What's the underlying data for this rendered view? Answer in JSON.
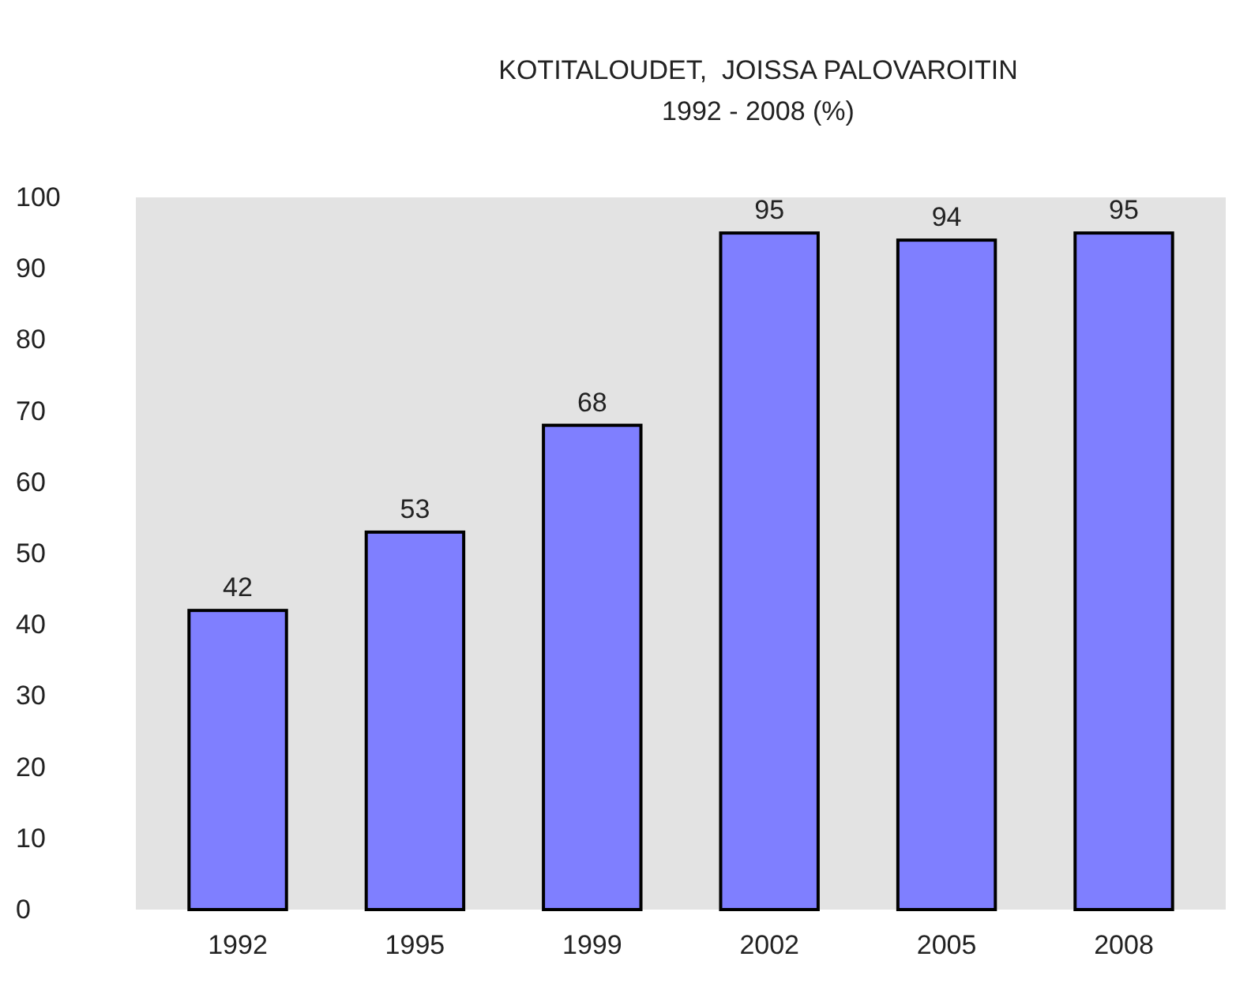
{
  "chart_data": {
    "type": "bar",
    "title": "KOTITALOUDET,  JOISSA PALOVAROITIN",
    "subtitle": "1992 - 2008 (%)",
    "categories": [
      "1992",
      "1995",
      "1999",
      "2002",
      "2005",
      "2008"
    ],
    "values": [
      42,
      53,
      68,
      95,
      94,
      95
    ],
    "color": "#7f7fff",
    "ylim": [
      0,
      100
    ],
    "yticks": [
      0,
      10,
      20,
      30,
      40,
      50,
      60,
      70,
      80,
      90,
      100
    ],
    "data_labels": true,
    "grid": false
  }
}
